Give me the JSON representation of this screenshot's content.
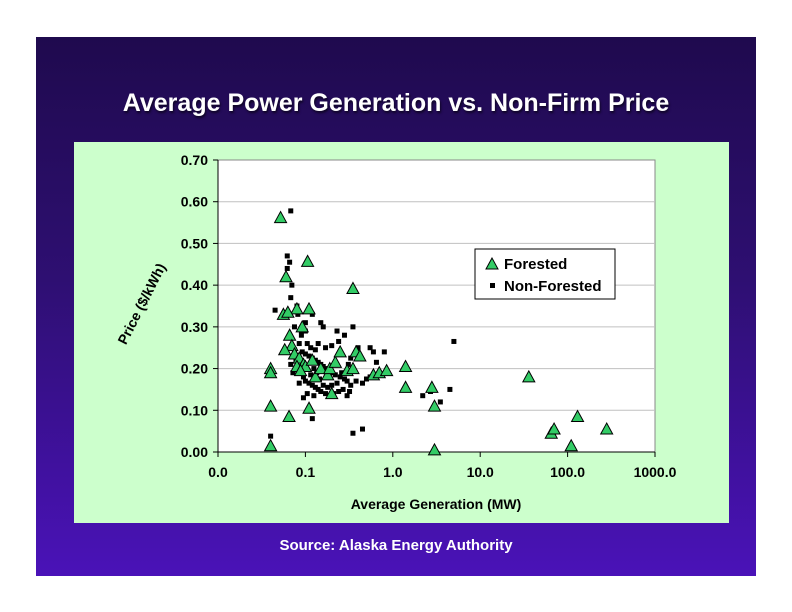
{
  "slide": {
    "title": "Average Power Generation vs. Non-Firm Price",
    "source": "Source: Alaska Energy Authority"
  },
  "colors": {
    "slide_top": "#1f0a4e",
    "slide_bottom": "#4a12b8",
    "chart_panel": "#ccffcc",
    "plot_area": "#ffffff",
    "forested_marker": "#33cc66",
    "nonforested_marker": "#000000"
  },
  "chart_data": {
    "type": "scatter",
    "xlabel": "Average Generation (MW)",
    "ylabel": "Price ($/kWh)",
    "x_scale": "log",
    "xlim": [
      0.01,
      1000
    ],
    "ylim": [
      0,
      0.7
    ],
    "x_ticks": [
      0.01,
      0.1,
      1,
      10,
      100,
      1000
    ],
    "x_tick_labels": [
      "0.0",
      "0.1",
      "1.0",
      "10.0",
      "100.0",
      "1000.0"
    ],
    "y_ticks": [
      0,
      0.1,
      0.2,
      0.3,
      0.4,
      0.5,
      0.6,
      0.7
    ],
    "y_tick_labels": [
      "0.00",
      "0.10",
      "0.20",
      "0.30",
      "0.40",
      "0.50",
      "0.60",
      "0.70"
    ],
    "grid": "horizontal",
    "legend_position": "right",
    "series": [
      {
        "name": "Forested",
        "marker": "triangle",
        "points": [
          [
            0.052,
            0.562
          ],
          [
            0.106,
            0.457
          ],
          [
            0.06,
            0.42
          ],
          [
            0.35,
            0.392
          ],
          [
            0.11,
            0.343
          ],
          [
            0.056,
            0.33
          ],
          [
            0.08,
            0.343
          ],
          [
            0.063,
            0.335
          ],
          [
            0.092,
            0.3
          ],
          [
            0.066,
            0.28
          ],
          [
            0.07,
            0.255
          ],
          [
            0.058,
            0.245
          ],
          [
            0.075,
            0.235
          ],
          [
            0.085,
            0.225
          ],
          [
            0.095,
            0.21
          ],
          [
            0.1,
            0.205
          ],
          [
            0.08,
            0.205
          ],
          [
            0.088,
            0.195
          ],
          [
            0.12,
            0.22
          ],
          [
            0.13,
            0.18
          ],
          [
            0.15,
            0.2
          ],
          [
            0.18,
            0.185
          ],
          [
            0.19,
            0.2
          ],
          [
            0.2,
            0.14
          ],
          [
            0.22,
            0.215
          ],
          [
            0.25,
            0.24
          ],
          [
            0.3,
            0.195
          ],
          [
            0.35,
            0.2
          ],
          [
            0.38,
            0.24
          ],
          [
            0.42,
            0.23
          ],
          [
            0.6,
            0.185
          ],
          [
            0.7,
            0.19
          ],
          [
            0.85,
            0.195
          ],
          [
            1.4,
            0.205
          ],
          [
            1.4,
            0.155
          ],
          [
            2.8,
            0.155
          ],
          [
            3.0,
            0.11
          ],
          [
            3.0,
            0.005
          ],
          [
            0.04,
            0.2
          ],
          [
            0.04,
            0.19
          ],
          [
            0.04,
            0.11
          ],
          [
            0.04,
            0.015
          ],
          [
            0.065,
            0.085
          ],
          [
            0.11,
            0.105
          ],
          [
            36,
            0.18
          ],
          [
            65,
            0.045
          ],
          [
            70,
            0.055
          ],
          [
            130,
            0.085
          ],
          [
            110,
            0.015
          ],
          [
            280,
            0.055
          ]
        ]
      },
      {
        "name": "Non-Forested",
        "marker": "square",
        "points": [
          [
            0.068,
            0.578
          ],
          [
            0.062,
            0.47
          ],
          [
            0.066,
            0.455
          ],
          [
            0.062,
            0.44
          ],
          [
            0.07,
            0.4
          ],
          [
            0.068,
            0.37
          ],
          [
            0.08,
            0.35
          ],
          [
            0.078,
            0.34
          ],
          [
            0.045,
            0.34
          ],
          [
            0.082,
            0.33
          ],
          [
            0.12,
            0.33
          ],
          [
            0.15,
            0.31
          ],
          [
            0.1,
            0.31
          ],
          [
            0.16,
            0.3
          ],
          [
            0.23,
            0.29
          ],
          [
            0.28,
            0.28
          ],
          [
            0.35,
            0.3
          ],
          [
            0.4,
            0.25
          ],
          [
            0.55,
            0.25
          ],
          [
            0.6,
            0.24
          ],
          [
            0.8,
            0.24
          ],
          [
            0.65,
            0.215
          ],
          [
            0.09,
            0.28
          ],
          [
            0.085,
            0.26
          ],
          [
            0.075,
            0.245
          ],
          [
            0.092,
            0.24
          ],
          [
            0.1,
            0.235
          ],
          [
            0.11,
            0.23
          ],
          [
            0.12,
            0.225
          ],
          [
            0.13,
            0.22
          ],
          [
            0.14,
            0.215
          ],
          [
            0.15,
            0.21
          ],
          [
            0.16,
            0.205
          ],
          [
            0.17,
            0.2
          ],
          [
            0.18,
            0.195
          ],
          [
            0.2,
            0.19
          ],
          [
            0.22,
            0.185
          ],
          [
            0.25,
            0.18
          ],
          [
            0.28,
            0.175
          ],
          [
            0.3,
            0.17
          ],
          [
            0.078,
            0.22
          ],
          [
            0.082,
            0.2
          ],
          [
            0.09,
            0.19
          ],
          [
            0.095,
            0.18
          ],
          [
            0.1,
            0.17
          ],
          [
            0.11,
            0.165
          ],
          [
            0.12,
            0.16
          ],
          [
            0.13,
            0.155
          ],
          [
            0.14,
            0.15
          ],
          [
            0.15,
            0.145
          ],
          [
            0.17,
            0.14
          ],
          [
            0.19,
            0.135
          ],
          [
            0.21,
            0.14
          ],
          [
            0.24,
            0.145
          ],
          [
            0.27,
            0.15
          ],
          [
            0.33,
            0.16
          ],
          [
            0.38,
            0.17
          ],
          [
            0.45,
            0.165
          ],
          [
            0.5,
            0.175
          ],
          [
            0.55,
            0.18
          ],
          [
            0.068,
            0.21
          ],
          [
            0.072,
            0.19
          ],
          [
            0.085,
            0.165
          ],
          [
            0.115,
            0.185
          ],
          [
            0.125,
            0.2
          ],
          [
            0.135,
            0.19
          ],
          [
            0.145,
            0.175
          ],
          [
            0.16,
            0.16
          ],
          [
            0.18,
            0.155
          ],
          [
            0.2,
            0.16
          ],
          [
            0.23,
            0.165
          ],
          [
            0.26,
            0.19
          ],
          [
            0.31,
            0.21
          ],
          [
            0.33,
            0.225
          ],
          [
            0.105,
            0.26
          ],
          [
            0.115,
            0.25
          ],
          [
            0.13,
            0.245
          ],
          [
            0.14,
            0.26
          ],
          [
            0.17,
            0.25
          ],
          [
            0.2,
            0.255
          ],
          [
            0.24,
            0.265
          ],
          [
            0.11,
            0.105
          ],
          [
            0.12,
            0.08
          ],
          [
            0.04,
            0.038
          ],
          [
            0.35,
            0.045
          ],
          [
            0.45,
            0.055
          ],
          [
            2.2,
            0.135
          ],
          [
            2.7,
            0.145
          ],
          [
            3.5,
            0.12
          ],
          [
            4.5,
            0.15
          ],
          [
            5.0,
            0.265
          ],
          [
            0.095,
            0.13
          ],
          [
            0.105,
            0.14
          ],
          [
            0.125,
            0.135
          ],
          [
            0.075,
            0.3
          ],
          [
            0.09,
            0.29
          ],
          [
            0.1,
            0.29
          ],
          [
            0.3,
            0.135
          ],
          [
            0.32,
            0.145
          ]
        ]
      }
    ]
  }
}
